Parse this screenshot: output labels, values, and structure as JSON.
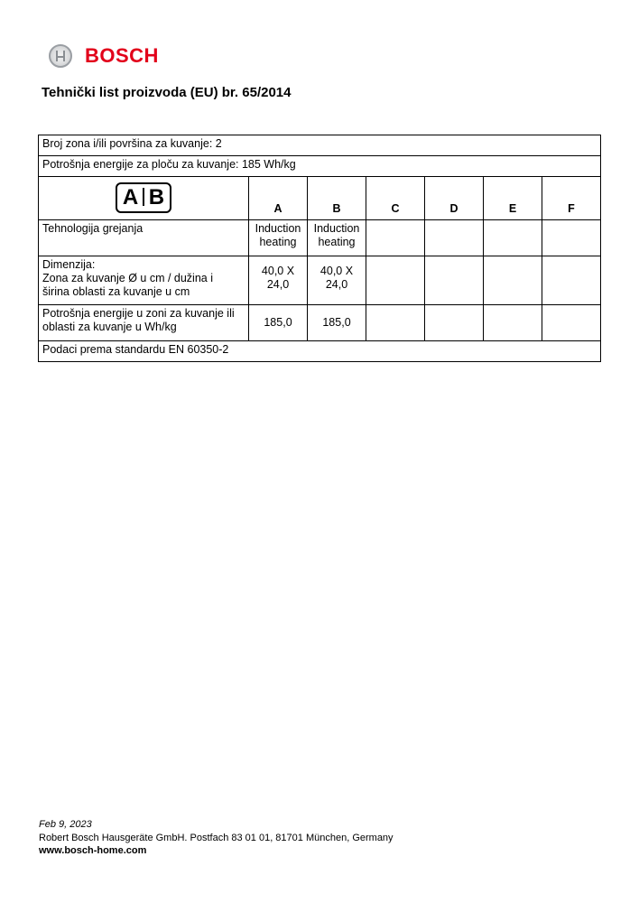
{
  "brand": {
    "name": "BOSCH",
    "color": "#e2001a",
    "icon": "bosch-armature-icon"
  },
  "title": "Tehnički list proizvoda (EU) br. 65/2014",
  "table": {
    "zones_row": "Broj zona i/ili površina za kuvanje: 2",
    "energy_row": "Potrošnja energije za ploču za kuvanje: 185 Wh/kg",
    "symbol": {
      "a": "A",
      "b": "B"
    },
    "columns": [
      "A",
      "B",
      "C",
      "D",
      "E",
      "F"
    ],
    "rows": [
      {
        "label": "Tehnologija grejanja",
        "values": [
          "Induction heating",
          "Induction heating",
          "",
          "",
          "",
          ""
        ]
      },
      {
        "label_lines": [
          "Dimenzija:",
          "Zona za kuvanje Ø u cm / dužina i širina oblasti za kuvanje u cm"
        ],
        "values": [
          "40,0 X 24,0",
          "40,0 X 24,0",
          "",
          "",
          "",
          ""
        ]
      },
      {
        "label": "Potrošnja energije u zoni za kuvanje ili oblasti za kuvanje u Wh/kg",
        "values": [
          "185,0",
          "185,0",
          "",
          "",
          "",
          ""
        ]
      }
    ],
    "standard_row": "Podaci prema standardu EN 60350-2"
  },
  "footer": {
    "date": "Feb 9, 2023",
    "address": "Robert Bosch Hausgeräte GmbH. Postfach 83 01 01, 81701 München, Germany",
    "website": "www.bosch-home.com"
  }
}
